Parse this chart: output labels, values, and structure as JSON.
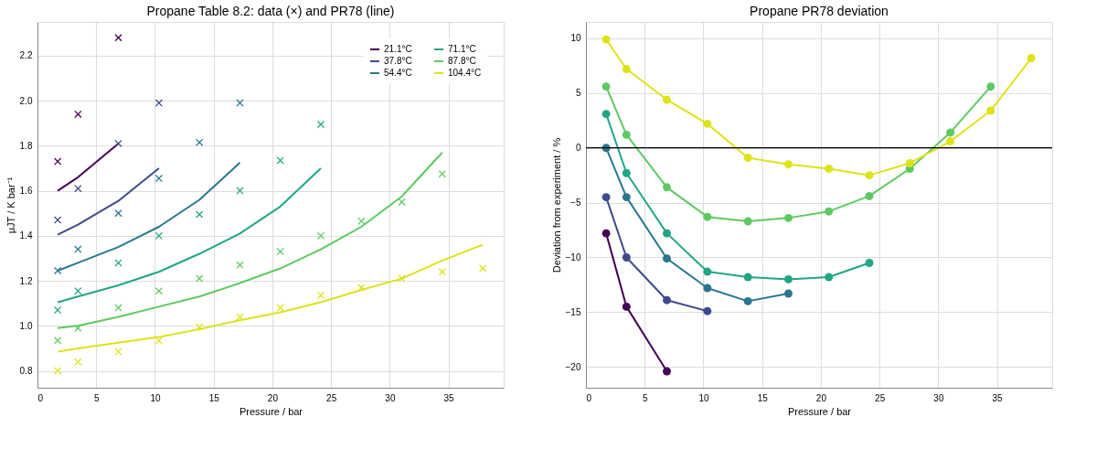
{
  "chart_data": [
    {
      "type": "line",
      "title": "Propane Table 8.2: data (×) and PR78 (line)",
      "xlabel": "Pressure / bar",
      "ylabel": "μJT / K bar⁻¹",
      "x": [
        1.72,
        3.45,
        6.89,
        10.34,
        13.79,
        17.24,
        20.68,
        24.13,
        27.58,
        31.03,
        34.47,
        37.92
      ],
      "xlim": [
        0,
        39.7
      ],
      "xticks": [
        0,
        5,
        10,
        15,
        20,
        25,
        30,
        35
      ],
      "ylim": [
        0.725,
        2.35
      ],
      "yticks": [
        {
          "value": 0.8,
          "label": "0.8"
        },
        {
          "value": 1,
          "label": "1.0"
        },
        {
          "value": 1.2,
          "label": "1.2"
        },
        {
          "value": 1.4,
          "label": "1.4"
        },
        {
          "value": 1.6,
          "label": "1.6"
        },
        {
          "value": 1.8,
          "label": "1.8"
        },
        {
          "value": 2,
          "label": "2.0"
        },
        {
          "value": 2.2,
          "label": "2.2"
        }
      ],
      "grid": true,
      "legend": "top right",
      "series": [
        {
          "name": "21.1°C",
          "color": "#440154",
          "values": [
            1.6,
            1.66,
            1.81,
            null,
            null,
            null,
            null,
            null,
            null,
            null,
            null,
            null
          ]
        },
        {
          "name": "37.8°C",
          "color": "#3e4a89",
          "values": [
            1.405,
            1.45,
            1.555,
            1.7,
            null,
            null,
            null,
            null,
            null,
            null,
            null,
            null
          ]
        },
        {
          "name": "54.4°C",
          "color": "#2a768e",
          "values": [
            1.245,
            1.28,
            1.35,
            1.44,
            1.56,
            1.725,
            null,
            null,
            null,
            null,
            null,
            null
          ]
        },
        {
          "name": "71.1°C",
          "color": "#22a584",
          "values": [
            1.105,
            1.13,
            1.18,
            1.24,
            1.32,
            1.41,
            1.53,
            1.7,
            null,
            null,
            null,
            null
          ]
        },
        {
          "name": "87.8°C",
          "color": "#5ec962",
          "values": [
            0.99,
            1.0,
            1.04,
            1.085,
            1.13,
            1.19,
            1.255,
            1.34,
            1.44,
            1.575,
            1.77,
            null
          ]
        },
        {
          "name": "104.4°C",
          "color": "#dde318",
          "values": [
            0.885,
            0.9,
            0.925,
            0.95,
            0.985,
            1.025,
            1.06,
            1.105,
            1.16,
            1.21,
            1.29,
            1.36
          ]
        },
        {
          "type": "scatter",
          "marker": "cross",
          "color": "#440154",
          "values": [
            1.73,
            1.94,
            2.28,
            null,
            null,
            null,
            null,
            null,
            null,
            null,
            null,
            null
          ]
        },
        {
          "type": "scatter",
          "marker": "cross",
          "color": "#3e4a89",
          "values": [
            1.47,
            1.61,
            1.81,
            1.99,
            null,
            null,
            null,
            null,
            null,
            null,
            null,
            null
          ]
        },
        {
          "type": "scatter",
          "marker": "cross",
          "color": "#2a768e",
          "values": [
            1.245,
            1.34,
            1.5,
            1.655,
            1.815,
            1.99,
            null,
            null,
            null,
            null,
            null,
            null
          ]
        },
        {
          "type": "scatter",
          "marker": "cross",
          "color": "#22a584",
          "values": [
            1.07,
            1.155,
            1.28,
            1.4,
            1.495,
            1.6,
            1.735,
            1.895,
            null,
            null,
            null,
            null
          ]
        },
        {
          "type": "scatter",
          "marker": "cross",
          "color": "#5ec962",
          "values": [
            0.935,
            0.99,
            1.08,
            1.155,
            1.21,
            1.27,
            1.33,
            1.4,
            1.465,
            1.55,
            1.675,
            null
          ]
        },
        {
          "type": "scatter",
          "marker": "cross",
          "color": "#dde318",
          "values": [
            0.8,
            0.84,
            0.885,
            0.935,
            0.995,
            1.04,
            1.08,
            1.135,
            1.17,
            1.21,
            1.24,
            1.255
          ]
        }
      ]
    },
    {
      "type": "line",
      "title": "Propane PR78 deviation",
      "xlabel": "Pressure / bar",
      "ylabel": "Deviation from experiment / %",
      "x": [
        1.72,
        3.45,
        6.89,
        10.34,
        13.79,
        17.24,
        20.68,
        24.13,
        27.58,
        31.03,
        34.47,
        37.92
      ],
      "xlim": [
        0,
        39.7
      ],
      "xticks": [
        0,
        5,
        10,
        15,
        20,
        25,
        30,
        35
      ],
      "ylim": [
        -21.9,
        11.5
      ],
      "yticks": [
        {
          "value": -20,
          "label": "−20"
        },
        {
          "value": -15,
          "label": "−15"
        },
        {
          "value": -10,
          "label": "−10"
        },
        {
          "value": -5,
          "label": "−5"
        },
        0,
        5,
        10
      ],
      "grid": true,
      "marker": "circle",
      "ref_lines": [
        {
          "axis": "y",
          "value": 0,
          "color": "#000000"
        }
      ],
      "series": [
        {
          "color": "#440154",
          "values": [
            -7.8,
            -14.5,
            -20.4,
            null,
            null,
            null,
            null,
            null,
            null,
            null,
            null,
            null
          ]
        },
        {
          "color": "#3e4a89",
          "values": [
            -4.5,
            -10.0,
            -13.9,
            -14.9,
            null,
            null,
            null,
            null,
            null,
            null,
            null,
            null
          ]
        },
        {
          "color": "#2a768e",
          "values": [
            0.0,
            -4.5,
            -10.1,
            -12.8,
            -14.0,
            -13.3,
            null,
            null,
            null,
            null,
            null,
            null
          ]
        },
        {
          "color": "#22a584",
          "values": [
            3.1,
            -2.3,
            -7.8,
            -11.3,
            -11.8,
            -12.0,
            -11.8,
            -10.5,
            null,
            null,
            null,
            null
          ]
        },
        {
          "color": "#5ec962",
          "values": [
            5.6,
            1.2,
            -3.6,
            -6.3,
            -6.7,
            -6.4,
            -5.8,
            -4.4,
            -1.9,
            1.4,
            5.6,
            null
          ]
        },
        {
          "color": "#dde318",
          "values": [
            9.9,
            7.2,
            4.4,
            2.2,
            -0.9,
            -1.5,
            -1.9,
            -2.5,
            -1.4,
            0.6,
            3.4,
            8.2
          ]
        }
      ]
    }
  ]
}
